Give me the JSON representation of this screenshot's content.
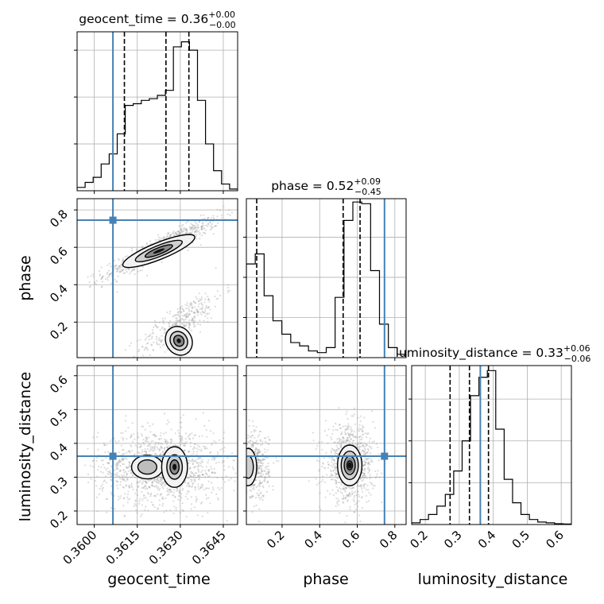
{
  "chart_data": {
    "type": "corner",
    "parameters": [
      "geocent_time",
      "phase",
      "luminosity_distance"
    ],
    "truths": {
      "geocent_time": 0.36065,
      "phase": 0.745,
      "luminosity_distance": 0.362
    },
    "colors": {
      "truth": "#4682b4",
      "hist": "#000000",
      "grid": "#b0b0b0",
      "points": "#9a9a9a"
    },
    "diagonal": [
      {
        "param": "geocent_time",
        "title_prefix": "geocent_time = ",
        "title_value": "0.36",
        "title_sup": "+0.00",
        "title_sub": "−0.00",
        "range": [
          0.3594,
          0.365
        ],
        "ticks": [
          0.36,
          0.3615,
          0.363,
          0.3645
        ],
        "tick_labels": [
          "0.3600",
          "0.3615",
          "0.3630",
          "0.3645"
        ],
        "quantiles": [
          0.36105,
          0.3625,
          0.3633
        ],
        "hist": [
          0.02,
          0.05,
          0.08,
          0.16,
          0.22,
          0.34,
          0.51,
          0.52,
          0.54,
          0.55,
          0.57,
          0.6,
          0.86,
          0.89,
          0.84,
          0.54,
          0.28,
          0.12,
          0.04,
          0.01
        ],
        "hist_yticks": [
          0.0,
          0.28,
          0.56,
          0.84
        ]
      },
      {
        "param": "phase",
        "title_prefix": "phase = ",
        "title_value": "0.52",
        "title_sup": "+0.09",
        "title_sub": "−0.45",
        "range": [
          0.01,
          0.86
        ],
        "ticks": [
          0.2,
          0.4,
          0.6,
          0.8
        ],
        "tick_labels": [
          "0.2",
          "0.4",
          "0.6",
          "0.8"
        ],
        "quantiles": [
          0.065,
          0.525,
          0.615
        ],
        "hist": [
          0.56,
          0.62,
          0.37,
          0.22,
          0.14,
          0.09,
          0.07,
          0.04,
          0.03,
          0.06,
          0.36,
          0.82,
          0.93,
          0.92,
          0.52,
          0.2,
          0.06,
          0.02
        ],
        "hist_yticks": [
          0.0,
          0.24,
          0.48,
          0.72
        ]
      },
      {
        "param": "luminosity_distance",
        "title_prefix": "luminosity_distance = ",
        "title_value": "0.33",
        "title_sup": "+0.06",
        "title_sub": "−0.06",
        "range": [
          0.16,
          0.63
        ],
        "ticks": [
          0.2,
          0.3,
          0.4,
          0.5,
          0.6
        ],
        "tick_labels": [
          "0.2",
          "0.3",
          "0.4",
          "0.5",
          "0.6"
        ],
        "quantiles": [
          0.273,
          0.33,
          0.386
        ],
        "hist": [
          0.01,
          0.03,
          0.06,
          0.11,
          0.18,
          0.32,
          0.5,
          0.77,
          0.88,
          0.92,
          0.57,
          0.27,
          0.13,
          0.06,
          0.03,
          0.015,
          0.01,
          0.005,
          0.003
        ],
        "hist_yticks": [
          0.0,
          0.25,
          0.5,
          0.75
        ]
      }
    ],
    "offdiagonal": [
      {
        "x": "geocent_time",
        "y": "phase",
        "ytick_labels": [
          "0.2",
          "0.4",
          "0.6",
          "0.8"
        ],
        "yticks": [
          0.2,
          0.4,
          0.6,
          0.8
        ]
      },
      {
        "x": "geocent_time",
        "y": "luminosity_distance",
        "ytick_labels": [
          "0.2",
          "0.3",
          "0.4",
          "0.5",
          "0.6"
        ],
        "yticks": [
          0.2,
          0.3,
          0.4,
          0.5,
          0.6
        ]
      },
      {
        "x": "phase",
        "y": "luminosity_distance"
      }
    ],
    "ylabels": {
      "phase": "phase",
      "luminosity_distance": "luminosity_distance"
    },
    "xlabels": {
      "geocent_time": "geocent_time",
      "phase": "phase",
      "luminosity_distance": "luminosity_distance"
    },
    "grid": true
  }
}
